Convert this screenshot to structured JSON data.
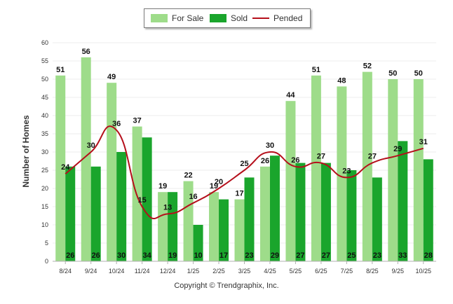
{
  "chart_data": {
    "type": "bar",
    "title": "",
    "xlabel": "",
    "ylabel": "Number of Homes",
    "ylim": [
      0,
      60
    ],
    "yticks": [
      0,
      5,
      10,
      15,
      20,
      25,
      30,
      35,
      40,
      45,
      50,
      55,
      60
    ],
    "categories": [
      "8/24",
      "9/24",
      "10/24",
      "11/24",
      "12/24",
      "1/25",
      "2/25",
      "3/25",
      "4/25",
      "5/25",
      "6/25",
      "7/25",
      "8/25",
      "9/25",
      "10/25"
    ],
    "series": [
      {
        "name": "For Sale",
        "type": "bar",
        "color": "#9edc8a",
        "values": [
          51,
          56,
          49,
          37,
          19,
          22,
          19,
          17,
          26,
          44,
          51,
          48,
          52,
          50,
          50
        ]
      },
      {
        "name": "Sold",
        "type": "bar",
        "color": "#1aa52c",
        "values": [
          26,
          26,
          30,
          34,
          19,
          10,
          17,
          23,
          29,
          27,
          27,
          25,
          23,
          33,
          28
        ]
      },
      {
        "name": "Pended",
        "type": "line",
        "color": "#b50f1b",
        "values": [
          24,
          30,
          36,
          15,
          13,
          16,
          20,
          25,
          30,
          26,
          27,
          23,
          27,
          29,
          31
        ]
      }
    ],
    "legend_position": "top-center"
  },
  "footer": {
    "copyright": "Copyright © Trendgraphix, Inc."
  }
}
